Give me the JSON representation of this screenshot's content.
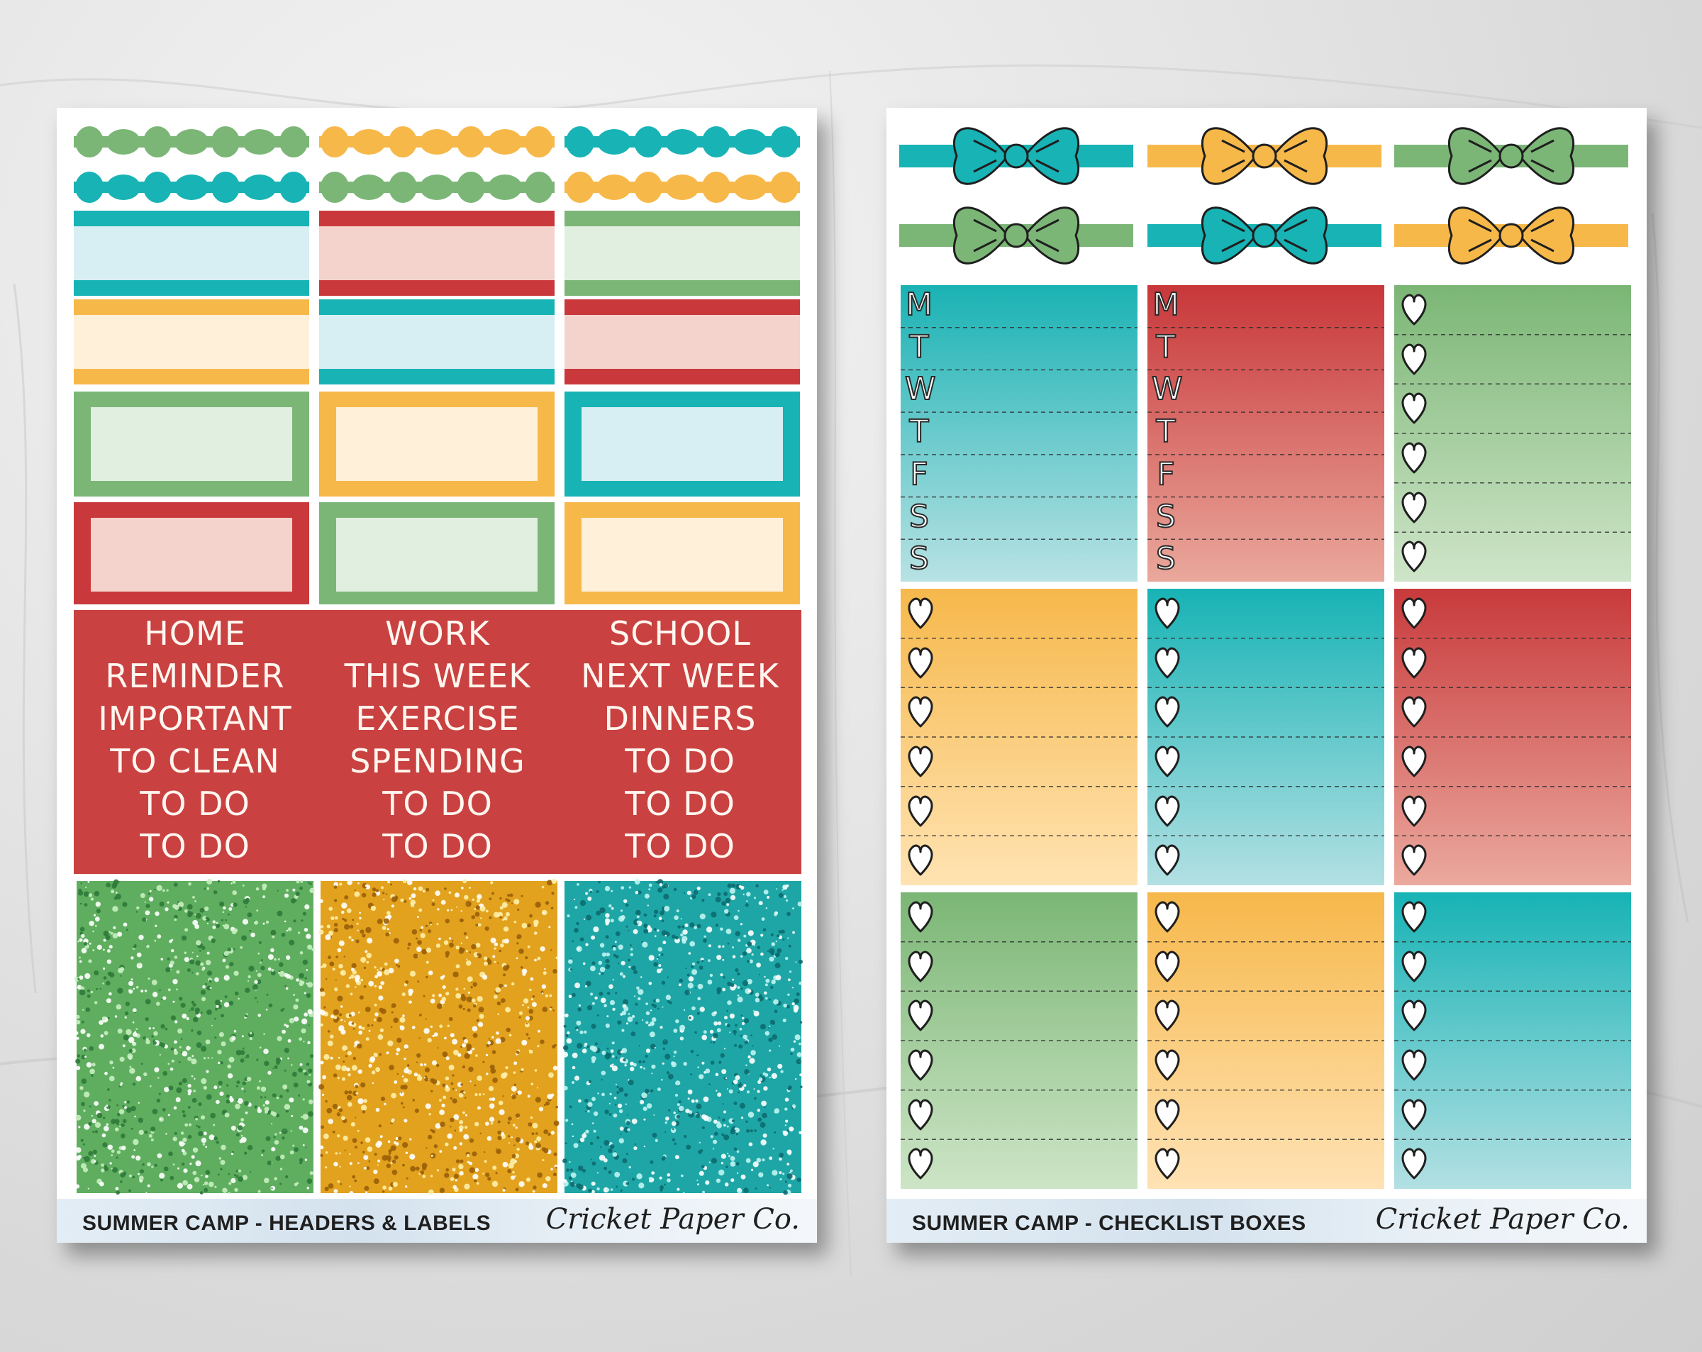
{
  "colors": {
    "teal": "#17b3b5",
    "green": "#7bb677",
    "yellow": "#f7b84a",
    "red": "#c9393c",
    "teal_light": "#d7eef2",
    "green_light": "#e1efe0",
    "yellow_light": "#fff0d9",
    "red_light": "#f4d3cc"
  },
  "left_sheet": {
    "word_columns": [
      [
        "HOME",
        "REMINDER",
        "IMPORTANT",
        "TO CLEAN",
        "TO DO",
        "TO DO"
      ],
      [
        "WORK",
        "THIS WEEK",
        "EXERCISE",
        "SPENDING",
        "TO DO",
        "TO DO"
      ],
      [
        "SCHOOL",
        "NEXT WEEK",
        "DINNERS",
        "TO DO",
        "TO DO",
        "TO DO"
      ]
    ],
    "footer_title": "SUMMER CAMP - HEADERS & LABELS",
    "brand": "Cricket Paper Co."
  },
  "right_sheet": {
    "weekday_letters": [
      "M",
      "T",
      "W",
      "T",
      "F",
      "S",
      "S"
    ],
    "footer_title": "SUMMER CAMP - CHECKLIST BOXES",
    "brand": "Cricket Paper Co."
  }
}
